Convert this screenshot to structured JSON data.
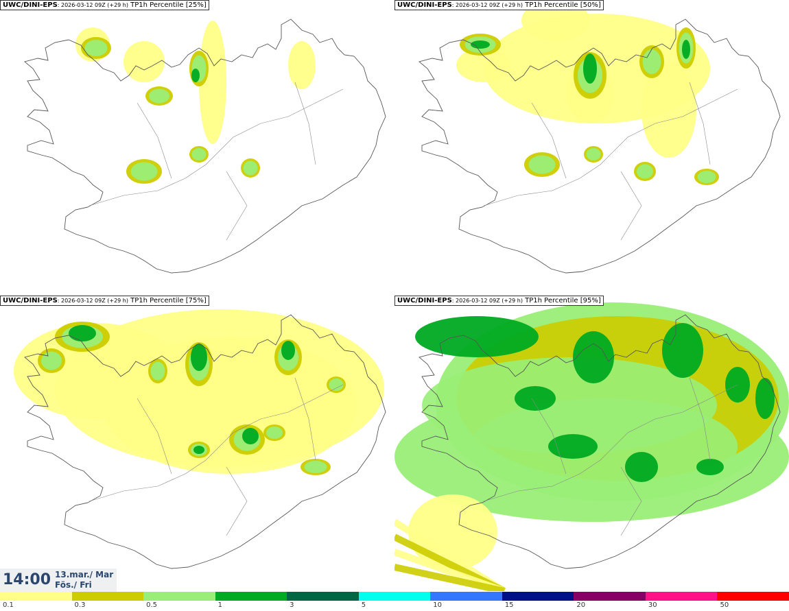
{
  "panels": [
    {
      "model": "UWC/DINI-EPS",
      "run": ": 2026-03-12 09Z (+29 h)",
      "label": " TP1h Percentile [25%]",
      "level": 0
    },
    {
      "model": "UWC/DINI-EPS",
      "run": ": 2026-03-12 09Z (+29 h)",
      "label": " TP1h Percentile [50%]",
      "level": 1
    },
    {
      "model": "UWC/DINI-EPS",
      "run": ": 2026-03-12 09Z (+29 h)",
      "label": " TP1h Percentile [75%]",
      "level": 2
    },
    {
      "model": "UWC/DINI-EPS",
      "run": ": 2026-03-12 09Z (+29 h)",
      "label": " TP1h Percentile [95%]",
      "level": 3
    }
  ],
  "time": {
    "clock": "14:00",
    "date_line1": "13.mar./ Mar",
    "date_line2": "Fös./ Fri"
  },
  "legend": {
    "colors": [
      "#ffff88",
      "#cccc00",
      "#99ee77",
      "#00aa22",
      "#006644",
      "#00ffee",
      "#3377ff",
      "#001188",
      "#880066",
      "#ff1188",
      "#ff0000"
    ],
    "labels": [
      "0.1",
      "0.3",
      "0.5",
      "1",
      "3",
      "5",
      "10",
      "15",
      "20",
      "30",
      "50"
    ]
  }
}
